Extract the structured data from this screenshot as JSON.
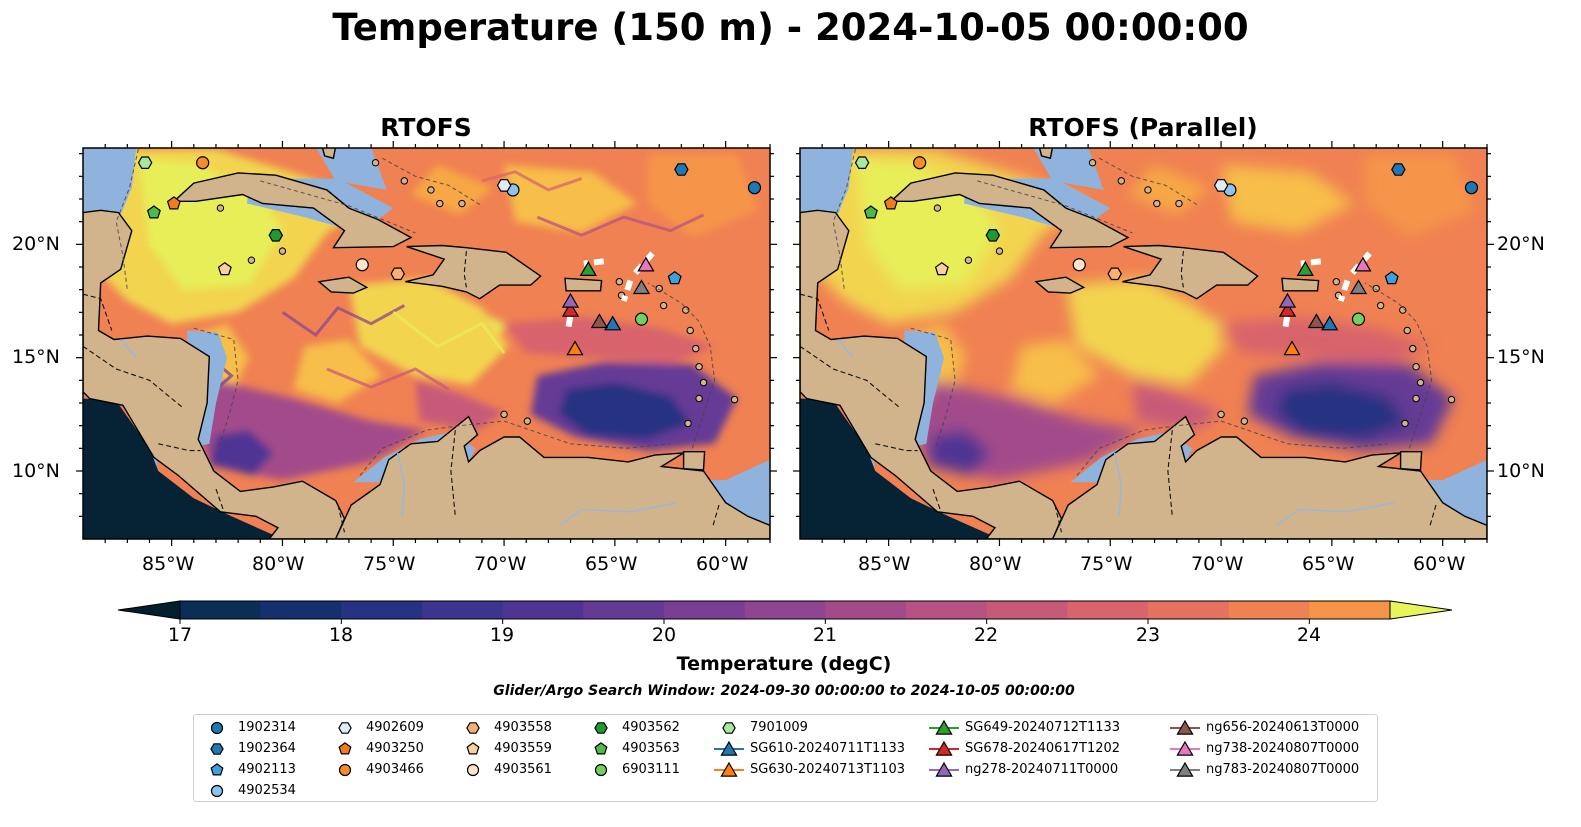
{
  "title": "Temperature (150 m) - 2024-10-05 00:00:00",
  "panels": [
    {
      "title": "RTOFS",
      "variant": "rtofs"
    },
    {
      "title": "RTOFS (Parallel)",
      "variant": "parallel"
    }
  ],
  "axes": {
    "lat_ticks": [
      "10°N",
      "15°N",
      "20°N"
    ],
    "lon_ticks": [
      "85°W",
      "80°W",
      "75°W",
      "70°W",
      "65°W",
      "60°W"
    ]
  },
  "colorbar": {
    "label": "Temperature (degC)",
    "ticks": [
      "17",
      "18",
      "19",
      "20",
      "21",
      "22",
      "23",
      "24"
    ],
    "min": 16.5,
    "max": 24.5,
    "step": 0.5,
    "colors": [
      "#04263a",
      "#0a2e56",
      "#162f6e",
      "#263382",
      "#3b3491",
      "#4f3593",
      "#653a95",
      "#7a3f94",
      "#8f4590",
      "#a34b8a",
      "#b75283",
      "#c85a79",
      "#d8646c",
      "#e5715f",
      "#f08152",
      "#f59449",
      "#f7a845",
      "#f7be48",
      "#f2d44f",
      "#e7ee58"
    ],
    "extend_low": "#031e2e",
    "extend_high": "#e8f55a"
  },
  "search_window": "Glider/Argo Search Window: 2024-09-30 00:00:00 to 2024-10-05 00:00:00",
  "chart_data": [
    {
      "type": "heatmap",
      "title": "RTOFS",
      "variable": "Temperature (150 m)",
      "units": "degC",
      "lon_range": [
        -89,
        -58
      ],
      "lat_range": [
        7,
        24
      ],
      "color_range": [
        17,
        24
      ],
      "contours": "-1000 m isobath (dashed)"
    },
    {
      "type": "heatmap",
      "title": "RTOFS (Parallel)",
      "variable": "Temperature (150 m)",
      "units": "degC",
      "lon_range": [
        -89,
        -58
      ],
      "lat_range": [
        7,
        24
      ],
      "color_range": [
        17,
        24
      ],
      "contours": "-1000 m isobath (dashed)"
    }
  ],
  "observations": [
    {
      "id": "1902314",
      "marker": "circle",
      "color": "#1f77b4",
      "lon": -58.7,
      "lat": 22.5
    },
    {
      "id": "1902364",
      "marker": "hexagon",
      "color": "#1f77b4",
      "lon": -62,
      "lat": 23.3
    },
    {
      "id": "4902113",
      "marker": "pentagon",
      "color": "#3f9fdc",
      "lon": -62.3,
      "lat": 18.5
    },
    {
      "id": "4902534",
      "marker": "circle",
      "color": "#8dc3ec",
      "lon": -69.6,
      "lat": 22.4
    },
    {
      "id": "4902609",
      "marker": "hexagon",
      "color": "#dcecf8",
      "lon": -70,
      "lat": 22.6
    },
    {
      "id": "4903250",
      "marker": "pentagon",
      "color": "#f07c1a",
      "lon": -84.9,
      "lat": 21.8
    },
    {
      "id": "4903466",
      "marker": "circle",
      "color": "#f48c2c",
      "lon": -83.6,
      "lat": 23.6
    },
    {
      "id": "4903558",
      "marker": "hexagon",
      "color": "#f9b072",
      "lon": -74.8,
      "lat": 18.7
    },
    {
      "id": "4903559",
      "marker": "pentagon",
      "color": "#fccf9f",
      "lon": -82.6,
      "lat": 18.9
    },
    {
      "id": "4903561",
      "marker": "circle",
      "color": "#fde5cc",
      "lon": -76.4,
      "lat": 19.1
    },
    {
      "id": "4903562",
      "marker": "hexagon",
      "color": "#1e9a2e",
      "lon": -80.3,
      "lat": 20.4
    },
    {
      "id": "4903563",
      "marker": "pentagon",
      "color": "#4cbb47",
      "lon": -85.8,
      "lat": 21.4
    },
    {
      "id": "6903111",
      "marker": "circle",
      "color": "#72d15e",
      "lon": -63.8,
      "lat": 16.7
    },
    {
      "id": "7901009",
      "marker": "hexagon",
      "color": "#a7e7a0",
      "lon": -86.2,
      "lat": 23.6
    },
    {
      "id": "SG610-20240711T1133",
      "marker": "triangle",
      "color": "#1f77b4",
      "line": true,
      "lon": -65.1,
      "lat": 16.5
    },
    {
      "id": "SG630-20240713T1103",
      "marker": "triangle",
      "color": "#ff7f0e",
      "line": true,
      "lon": -66.8,
      "lat": 15.4
    },
    {
      "id": "SG649-20240712T1133",
      "marker": "triangle",
      "color": "#2ca02c",
      "line": true,
      "lon": -66.2,
      "lat": 18.9
    },
    {
      "id": "SG678-20240617T1202",
      "marker": "triangle",
      "color": "#d62728",
      "line": true,
      "lon": -67,
      "lat": 17.1
    },
    {
      "id": "ng278-20240711T0000",
      "marker": "triangle",
      "color": "#9467bd",
      "line": true,
      "lon": -67,
      "lat": 17.5
    },
    {
      "id": "ng656-20240613T0000",
      "marker": "triangle",
      "color": "#8c564b",
      "line": true,
      "lon": -65.7,
      "lat": 16.6
    },
    {
      "id": "ng738-20240807T0000",
      "marker": "triangle",
      "color": "#e377c2",
      "line": true,
      "lon": -63.6,
      "lat": 19.1
    },
    {
      "id": "ng783-20240807T0000",
      "marker": "triangle",
      "color": "#7f7f7f",
      "line": true,
      "lon": -63.8,
      "lat": 18.1
    }
  ]
}
